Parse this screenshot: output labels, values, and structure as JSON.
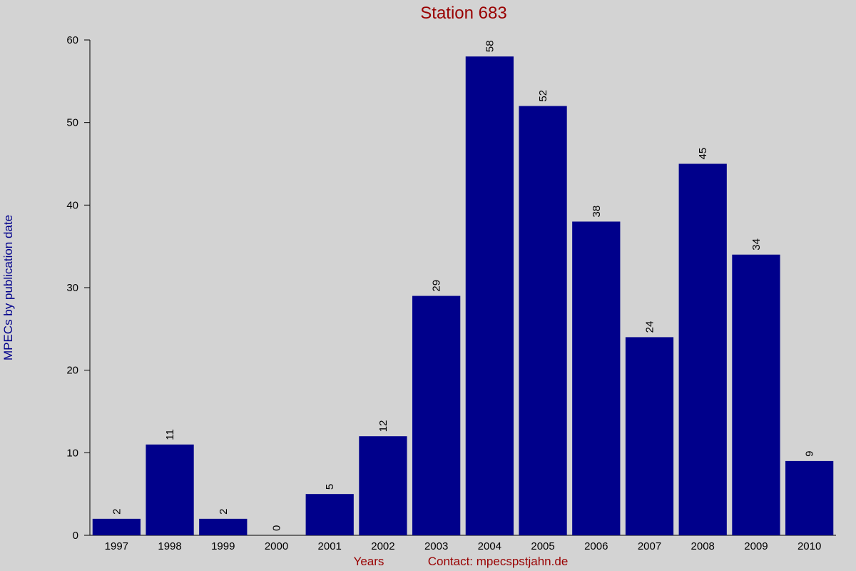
{
  "chart_data": {
    "type": "bar",
    "title": "Station 683",
    "y_label": "MPECs by publication date",
    "x_label": "Years",
    "note": "Contact: mpecspstjahn.de",
    "categories": [
      "1997",
      "1998",
      "1999",
      "2000",
      "2001",
      "2002",
      "2003",
      "2004",
      "2005",
      "2006",
      "2007",
      "2008",
      "2009",
      "2010"
    ],
    "values": [
      2,
      11,
      2,
      0,
      5,
      12,
      29,
      58,
      52,
      38,
      24,
      45,
      34,
      9
    ],
    "color": "#00008b",
    "ylim": [
      0,
      60
    ],
    "yticks": [
      0,
      10,
      20,
      30,
      40,
      50,
      60
    ],
    "grid": false
  }
}
